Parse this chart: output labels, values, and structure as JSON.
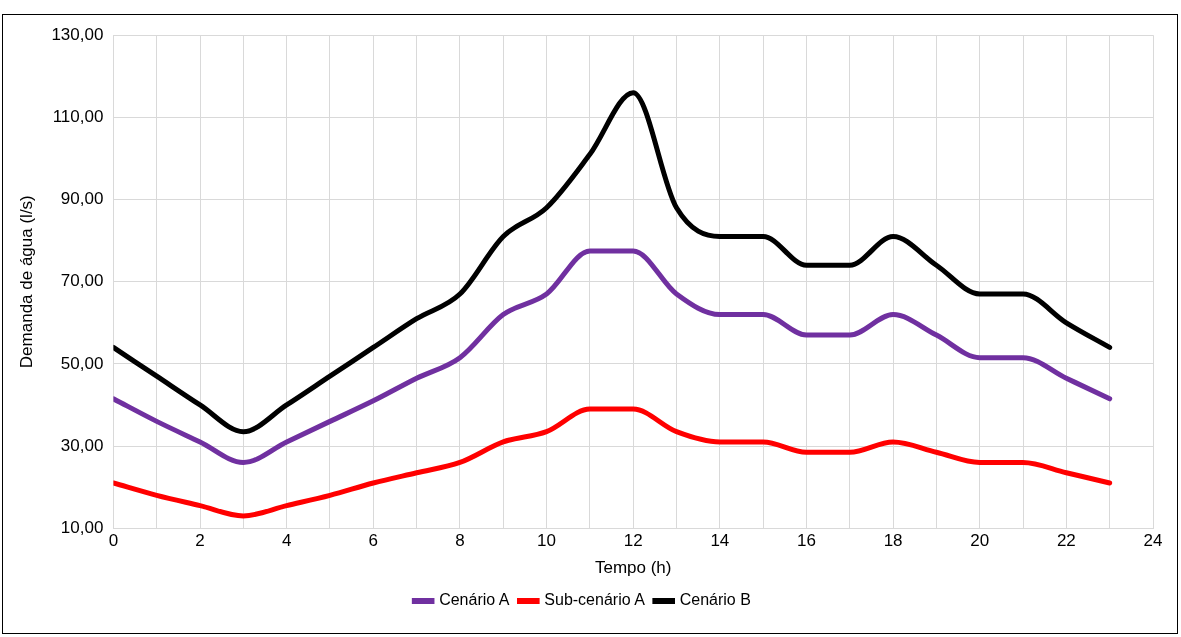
{
  "chart_data": {
    "type": "line",
    "xlabel": "Tempo (h)",
    "ylabel": "Demanda de água (l/s)",
    "x": [
      0,
      1,
      2,
      3,
      4,
      5,
      6,
      7,
      8,
      9,
      10,
      11,
      12,
      13,
      14,
      15,
      16,
      17,
      18,
      19,
      20,
      21,
      22,
      23
    ],
    "series": [
      {
        "name": "Cenário A",
        "color": "#7030a0",
        "values": [
          41.5,
          36,
          31,
          26,
          31,
          36,
          41,
          46.5,
          51.5,
          62,
          67,
          77.5,
          77.5,
          67,
          62,
          62,
          57,
          57,
          62,
          57,
          51.5,
          51.5,
          46.5,
          41.5
        ]
      },
      {
        "name": "Sub-cenário A",
        "color": "#ff0000",
        "values": [
          21,
          18,
          15.5,
          13,
          15.5,
          18,
          21,
          23.5,
          26,
          31,
          33.5,
          39,
          39,
          33.5,
          31,
          31,
          28.5,
          28.5,
          31,
          28.5,
          26,
          26,
          23.5,
          21
        ]
      },
      {
        "name": "Cenário B",
        "color": "#000000",
        "values": [
          54,
          47,
          40,
          33.5,
          40,
          47,
          54,
          61,
          67,
          81,
          88,
          101,
          116,
          88,
          81,
          81,
          74,
          74,
          81,
          74,
          67,
          67,
          60,
          54
        ]
      }
    ],
    "xlim": [
      0,
      24
    ],
    "xticks": [
      0,
      {
        "value": 1,
        "label": null
      },
      2,
      {
        "value": 3,
        "label": null
      },
      4,
      {
        "value": 5,
        "label": null
      },
      6,
      {
        "value": 7,
        "label": null
      },
      8,
      {
        "value": 9,
        "label": null
      },
      10,
      {
        "value": 11,
        "label": null
      },
      12,
      {
        "value": 13,
        "label": null
      },
      14,
      {
        "value": 15,
        "label": null
      },
      16,
      {
        "value": 17,
        "label": null
      },
      18,
      {
        "value": 19,
        "label": null
      },
      20,
      {
        "value": 21,
        "label": null
      },
      22,
      {
        "value": 23,
        "label": null
      },
      24
    ],
    "ylim": [
      10,
      130
    ],
    "yticks": [
      {
        "value": 10,
        "label": "10,00"
      },
      {
        "value": 30,
        "label": "30,00"
      },
      {
        "value": 50,
        "label": "50,00"
      },
      {
        "value": 70,
        "label": "70,00"
      },
      {
        "value": 90,
        "label": "90,00"
      },
      {
        "value": 110,
        "label": "110,00"
      },
      {
        "value": 130,
        "label": "130,00"
      }
    ],
    "grid": true,
    "legend": "bottom",
    "marker": "none",
    "line_style": "solid"
  }
}
